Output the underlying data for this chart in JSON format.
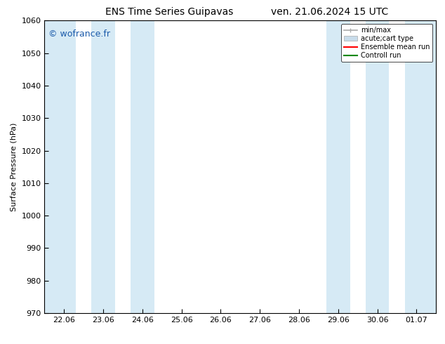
{
  "title_left": "ENS Time Series Guipavas",
  "title_right": "ven. 21.06.2024 15 UTC",
  "ylabel": "Surface Pressure (hPa)",
  "ylim": [
    970,
    1060
  ],
  "yticks": [
    970,
    980,
    990,
    1000,
    1010,
    1020,
    1030,
    1040,
    1050,
    1060
  ],
  "x_labels": [
    "22.06",
    "23.06",
    "24.06",
    "25.06",
    "26.06",
    "27.06",
    "28.06",
    "29.06",
    "30.06",
    "01.07"
  ],
  "x_positions": [
    0,
    1,
    2,
    3,
    4,
    5,
    6,
    7,
    8,
    9
  ],
  "x_min": -0.5,
  "x_max": 9.5,
  "shaded_bands": [
    {
      "x_start": -0.5,
      "x_end": 0.3,
      "color": "#d6eaf5"
    },
    {
      "x_start": 0.7,
      "x_end": 1.3,
      "color": "#d6eaf5"
    },
    {
      "x_start": 1.7,
      "x_end": 2.3,
      "color": "#d6eaf5"
    },
    {
      "x_start": 6.7,
      "x_end": 7.3,
      "color": "#d6eaf5"
    },
    {
      "x_start": 7.7,
      "x_end": 8.3,
      "color": "#d6eaf5"
    },
    {
      "x_start": 8.7,
      "x_end": 9.5,
      "color": "#d6eaf5"
    }
  ],
  "watermark": "© wofrance.fr",
  "watermark_color": "#1a5aaa",
  "legend_entries": [
    {
      "label": "min/max",
      "color": "#aaaaaa",
      "type": "errorbar"
    },
    {
      "label": "acute;cart type",
      "color": "#c8dcea",
      "type": "fill"
    },
    {
      "label": "Ensemble mean run",
      "color": "#ff0000",
      "type": "line"
    },
    {
      "label": "Controll run",
      "color": "#008800",
      "type": "line"
    }
  ],
  "bg_color": "#ffffff",
  "plot_bg_color": "#ffffff",
  "font_size": 8,
  "title_font_size": 10
}
